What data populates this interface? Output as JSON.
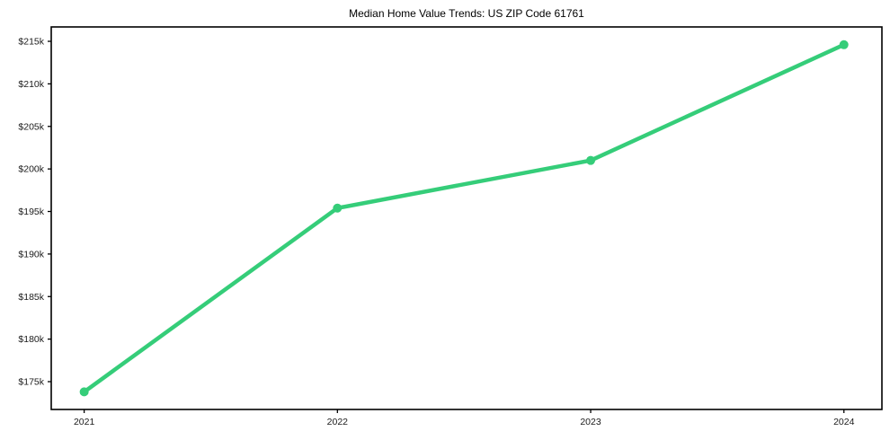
{
  "title": "Median Home Value Trends: US ZIP Code 61761",
  "colors": {
    "line_green": "#35cd79",
    "axis_black": "#000000",
    "tick_text": "#1a1a1a",
    "background": "#ffffff"
  },
  "chart_data": {
    "type": "line",
    "title": "Median Home Value Trends: US ZIP Code 61761",
    "xlabel": "",
    "ylabel": "",
    "x": [
      2021,
      2022,
      2023,
      2024
    ],
    "xtick_labels": [
      "2021",
      "2022",
      "2023",
      "2024"
    ],
    "series": [
      {
        "name": "Median Home Value",
        "values": [
          173800,
          195400,
          201000,
          214600
        ]
      }
    ],
    "yticks": [
      175000,
      180000,
      185000,
      190000,
      195000,
      200000,
      205000,
      210000,
      215000
    ],
    "ytick_labels": [
      "$175k",
      "$180k",
      "$185k",
      "$190k",
      "$195k",
      "$200k",
      "$205k",
      "$210k",
      "$215k"
    ],
    "xlim": [
      2020.87,
      2024.15
    ],
    "ylim": [
      171730,
      216690
    ],
    "grid": false,
    "legend": "none",
    "marker": "circle",
    "line_width": 4.5,
    "marker_radius": 5
  }
}
